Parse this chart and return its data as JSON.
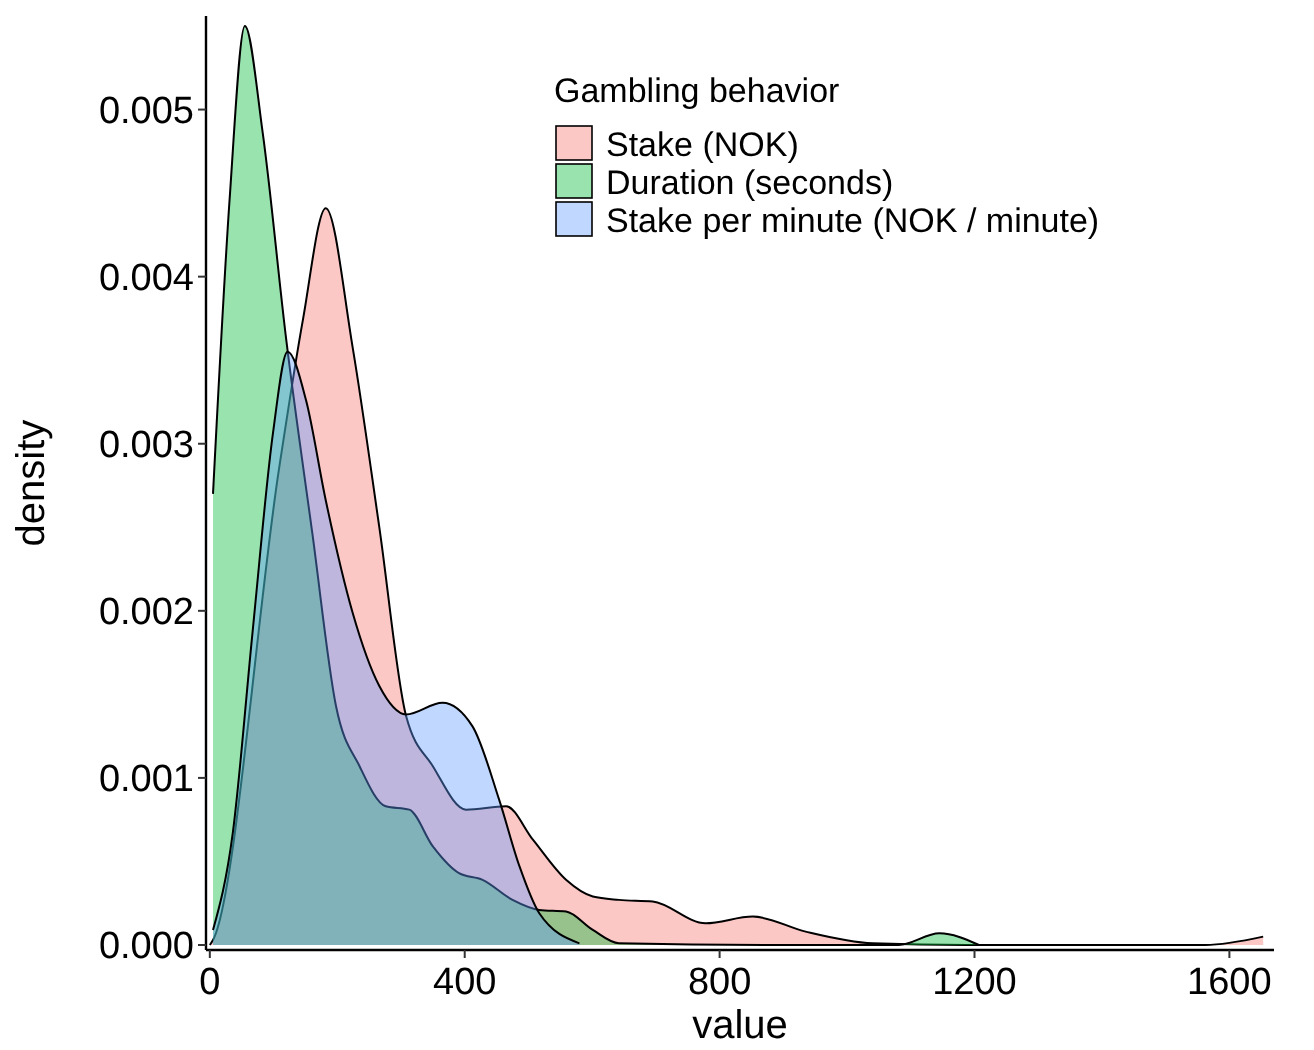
{
  "chart_data": {
    "type": "area",
    "xlabel": "value",
    "ylabel": "density",
    "legend_title": "Gambling behavior",
    "legend": "top right",
    "grid": false,
    "xlim": [
      -6,
      1670
    ],
    "xticks": [
      0,
      400,
      800,
      1200,
      1600
    ],
    "ylim": [
      -3e-05,
      0.00556
    ],
    "yticks": [
      {
        "value": 0,
        "label": "0.000"
      },
      {
        "value": 0.001,
        "label": "0.001"
      },
      {
        "value": 0.002,
        "label": "0.002"
      },
      {
        "value": 0.003,
        "label": "0.003"
      },
      {
        "value": 0.004,
        "label": "0.004"
      },
      {
        "value": 0.005,
        "label": "0.005"
      }
    ],
    "series": [
      {
        "name": "Stake (NOK)",
        "color": "#f8766d",
        "x": [
          0,
          5,
          109,
          146,
          182,
          224,
          266,
          308,
          350,
          402,
          465,
          507,
          559,
          601,
          642,
          695,
          778,
          852,
          935,
          1040,
          1187,
          1400,
          1562,
          1653
        ],
        "values": [
          0,
          3e-05,
          0.00286,
          0.00374,
          0.00441,
          0.00358,
          0.0025,
          0.00137,
          0.00107,
          0.00081,
          0.00083,
          0.00063,
          0.00039,
          0.00029,
          0.00027,
          0.00026,
          0.00013,
          0.00017,
          8e-05,
          1e-05,
          0,
          0,
          0,
          5e-05
        ]
      },
      {
        "name": "Duration (seconds)",
        "color": "#00ba38",
        "x": [
          5,
          31,
          55,
          83,
          120,
          161,
          198,
          235,
          276,
          313,
          350,
          391,
          428,
          475,
          517,
          559,
          601,
          642,
          900,
          1081,
          1145,
          1207
        ],
        "values": [
          0.0027,
          0.00446,
          0.0055,
          0.00486,
          0.00362,
          0.00246,
          0.00143,
          0.00107,
          0.00083,
          0.00081,
          0.00059,
          0.00043,
          0.00039,
          0.00027,
          0.00021,
          0.0002,
          9e-05,
          1e-05,
          0,
          0,
          7e-05,
          0
        ]
      },
      {
        "name": "Stake per minute (NOK / minute)",
        "color": "#619cff",
        "x": [
          5,
          36,
          67,
          99,
          122,
          151,
          182,
          224,
          266,
          308,
          365,
          412,
          454,
          486,
          517,
          580
        ],
        "values": [
          9e-05,
          0.00067,
          0.00187,
          0.00306,
          0.00355,
          0.00326,
          0.00266,
          0.00199,
          0.00155,
          0.00138,
          0.00145,
          0.00131,
          0.00087,
          0.00047,
          0.00019,
          1e-05
        ]
      }
    ]
  }
}
